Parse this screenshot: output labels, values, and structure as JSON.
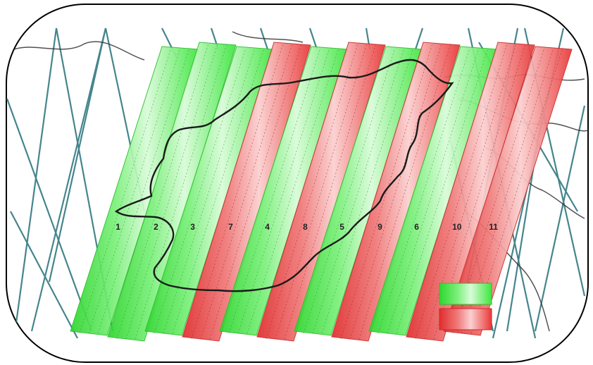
{
  "map": {
    "colors": {
      "frame": "#000000",
      "border_line": "#1a1a1a",
      "track_line": "#3b7f86",
      "green_strip": "#3fe63f",
      "green_strip_light": "#c6f7c6",
      "red_strip": "#ee3b3b",
      "red_strip_light": "#f8b7b7"
    },
    "strips": [
      {
        "label": "1",
        "color": "green"
      },
      {
        "label": "2",
        "color": "green"
      },
      {
        "label": "3",
        "color": "green"
      },
      {
        "label": "7",
        "color": "red"
      },
      {
        "label": "4",
        "color": "green"
      },
      {
        "label": "8",
        "color": "red"
      },
      {
        "label": "5",
        "color": "green"
      },
      {
        "label": "9",
        "color": "red"
      },
      {
        "label": "6",
        "color": "green"
      },
      {
        "label": "10",
        "color": "red"
      },
      {
        "label": "11",
        "color": "red"
      }
    ],
    "legend": {
      "items": [
        {
          "color": "green"
        },
        {
          "color": "red"
        }
      ]
    }
  }
}
